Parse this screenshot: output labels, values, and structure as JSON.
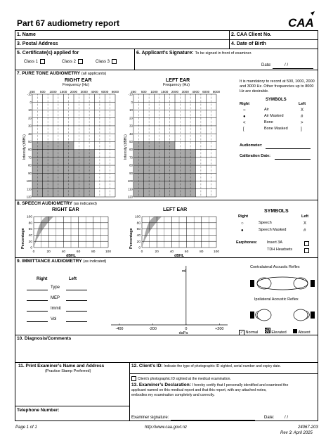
{
  "header": {
    "title": "Part 67 audiometry report",
    "logo_text": "CAA"
  },
  "fields": {
    "name": "1. Name",
    "client_no": "2. CAA Client No.",
    "postal_address": "3. Postal Address",
    "dob": "4. Date of Birth",
    "certificates": "5. Certificate(s) applied for",
    "class1": "Class 1",
    "class2": "Class 2",
    "class3": "Class 3",
    "sig_label": "6. Applicant’s Signature:",
    "sig_note": "To be signed in front of examiner.",
    "date_label": "Date:",
    "date_slashes": "/        /"
  },
  "pta": {
    "title": "7. PURE TONE AUDIOMETRY",
    "subtitle": "(all applicants)",
    "right_ear": "RIGHT EAR",
    "left_ear": "LEFT EAR",
    "freq_label": "Frequency (Hz)",
    "freq_ticks": [
      "250",
      "500",
      "1000",
      "1500",
      "2000",
      "3000",
      "4000",
      "6000",
      "8000"
    ],
    "db_ticks": [
      "-10",
      "0",
      "10",
      "20",
      "30",
      "40",
      "50",
      "60",
      "70",
      "80",
      "90",
      "100",
      "110",
      "120"
    ],
    "y_label": "Intensity (dBHL)",
    "note": "It is mandatory to record at 500, 1000, 2000 and 3000 Hz. Other frequencies up to 8000 Hz are desirable.",
    "symbols_title": "SYMBOLS",
    "right": "Right",
    "left": "Left",
    "symbols": [
      {
        "right": "○",
        "label": "Air",
        "left": "X"
      },
      {
        "right": "●",
        "label": "Air Masked",
        "left": "#"
      },
      {
        "right": "<",
        "label": "Bone",
        "left": ">"
      },
      {
        "right": "[",
        "label": "Bone Masked",
        "left": "]"
      }
    ],
    "audiometer": "Audiometer:",
    "calibration": "Calibration Date:"
  },
  "speech": {
    "title": "8. SPEECH AUDIOMETRY",
    "subtitle": "(as indicated)",
    "right_ear": "RIGHT EAR",
    "left_ear": "LEFT EAR",
    "y_ticks": [
      "100",
      "80",
      "60",
      "40",
      "20",
      "0"
    ],
    "x_ticks": [
      "0",
      "20",
      "40",
      "60",
      "80",
      "100"
    ],
    "y_label": "Percentage",
    "x_label": "dBHL",
    "symbols_title": "SYMBOLS",
    "right": "Right",
    "left": "Left",
    "symbols": [
      {
        "right": "○",
        "label": "Speech",
        "left": "X"
      },
      {
        "right": "●",
        "label": "Speech Masked",
        "left": "#"
      }
    ],
    "earphones": "Earphones:",
    "insert": "Insert 3A",
    "tdh": "TDH Headsets"
  },
  "immittance": {
    "title": "9. IMMITTANCE AUDIOMETRY",
    "subtitle": "(as indicated)",
    "right": "Right",
    "left": "Left",
    "rows": [
      "Type",
      "MEP",
      "Immit",
      "Vol"
    ],
    "ml": "ml",
    "x_ticks": [
      "-400",
      "-200",
      "0",
      "+200"
    ],
    "x_label": "daPa",
    "contra": "Contralateral Acoustic Reflex",
    "ipsi": "Ipsilateral Acoustic Reflex",
    "normal": "Normal",
    "elevated": "Elevated",
    "absent": "Absent"
  },
  "diagnosis": {
    "title": "10. Diagnosis/Comments"
  },
  "examiner": {
    "title": "11.     Print Examiner’s Name and Address",
    "subtitle": "(Practice Stamp Preferred)",
    "telephone": "Telephone Number:",
    "id_title": "12. Client’s ID:",
    "id_text": "Indicate the type of photographic ID sighted, serial number and expiry date.",
    "id_check": "Client’s photographic ID sighted at the medical examination.",
    "decl_title": "13. Examiner’s Declaration:",
    "decl_text_1": "I hereby certify that I personally identified and examined the",
    "decl_text_2": "applicant named on this medical report and that this report, with any attached notes,",
    "decl_text_3": "embodies my examination completely and correctly.",
    "sig": "Examiner signature:",
    "date": "Date:",
    "date_slashes": "/        /"
  },
  "footer": {
    "page": "Page 1 of 1",
    "url": "http://www.caa.govt.nz",
    "code": "24067-203",
    "rev": "Rev 3: April 2025"
  }
}
